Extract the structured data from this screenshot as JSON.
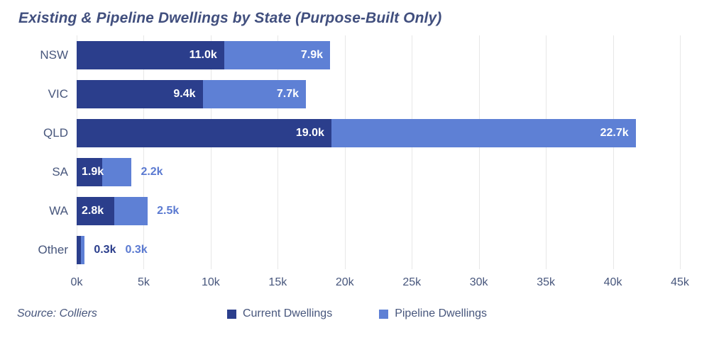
{
  "chart_data": {
    "type": "bar",
    "orientation": "horizontal-stacked",
    "title": "Existing & Pipeline Dwellings by State (Purpose-Built Only)",
    "categories": [
      "NSW",
      "VIC",
      "QLD",
      "SA",
      "WA",
      "Other"
    ],
    "series": [
      {
        "name": "Current Dwellings",
        "color": "#2b3e8c",
        "values": [
          11000,
          9400,
          19000,
          1900,
          2800,
          300
        ],
        "labels": [
          "11.0k",
          "9.4k",
          "19.0k",
          "1.9k",
          "2.8k",
          "0.3k"
        ]
      },
      {
        "name": "Pipeline Dwellings",
        "color": "#5e80d5",
        "values": [
          7900,
          7700,
          22700,
          2200,
          2500,
          300
        ],
        "labels": [
          "7.9k",
          "7.7k",
          "22.7k",
          "2.2k",
          "2.5k",
          "0.3k"
        ]
      }
    ],
    "x_ticks": [
      "0k",
      "5k",
      "10k",
      "15k",
      "20k",
      "25k",
      "30k",
      "35k",
      "40k",
      "45k"
    ],
    "xlim": [
      0,
      45000
    ],
    "tick_step": 5000,
    "grid": "vertical",
    "legend_position": "bottom-center",
    "source": "Source: Colliers"
  },
  "colors": {
    "title_text": "#414f7e",
    "axis_text": "#47567c",
    "gridline": "#e7e7e7",
    "value_inside_text": "#ffffff",
    "current_outside_text": "#2b3e8c",
    "pipeline_outside_text": "#5b7ad1",
    "background": "#ffffff"
  }
}
